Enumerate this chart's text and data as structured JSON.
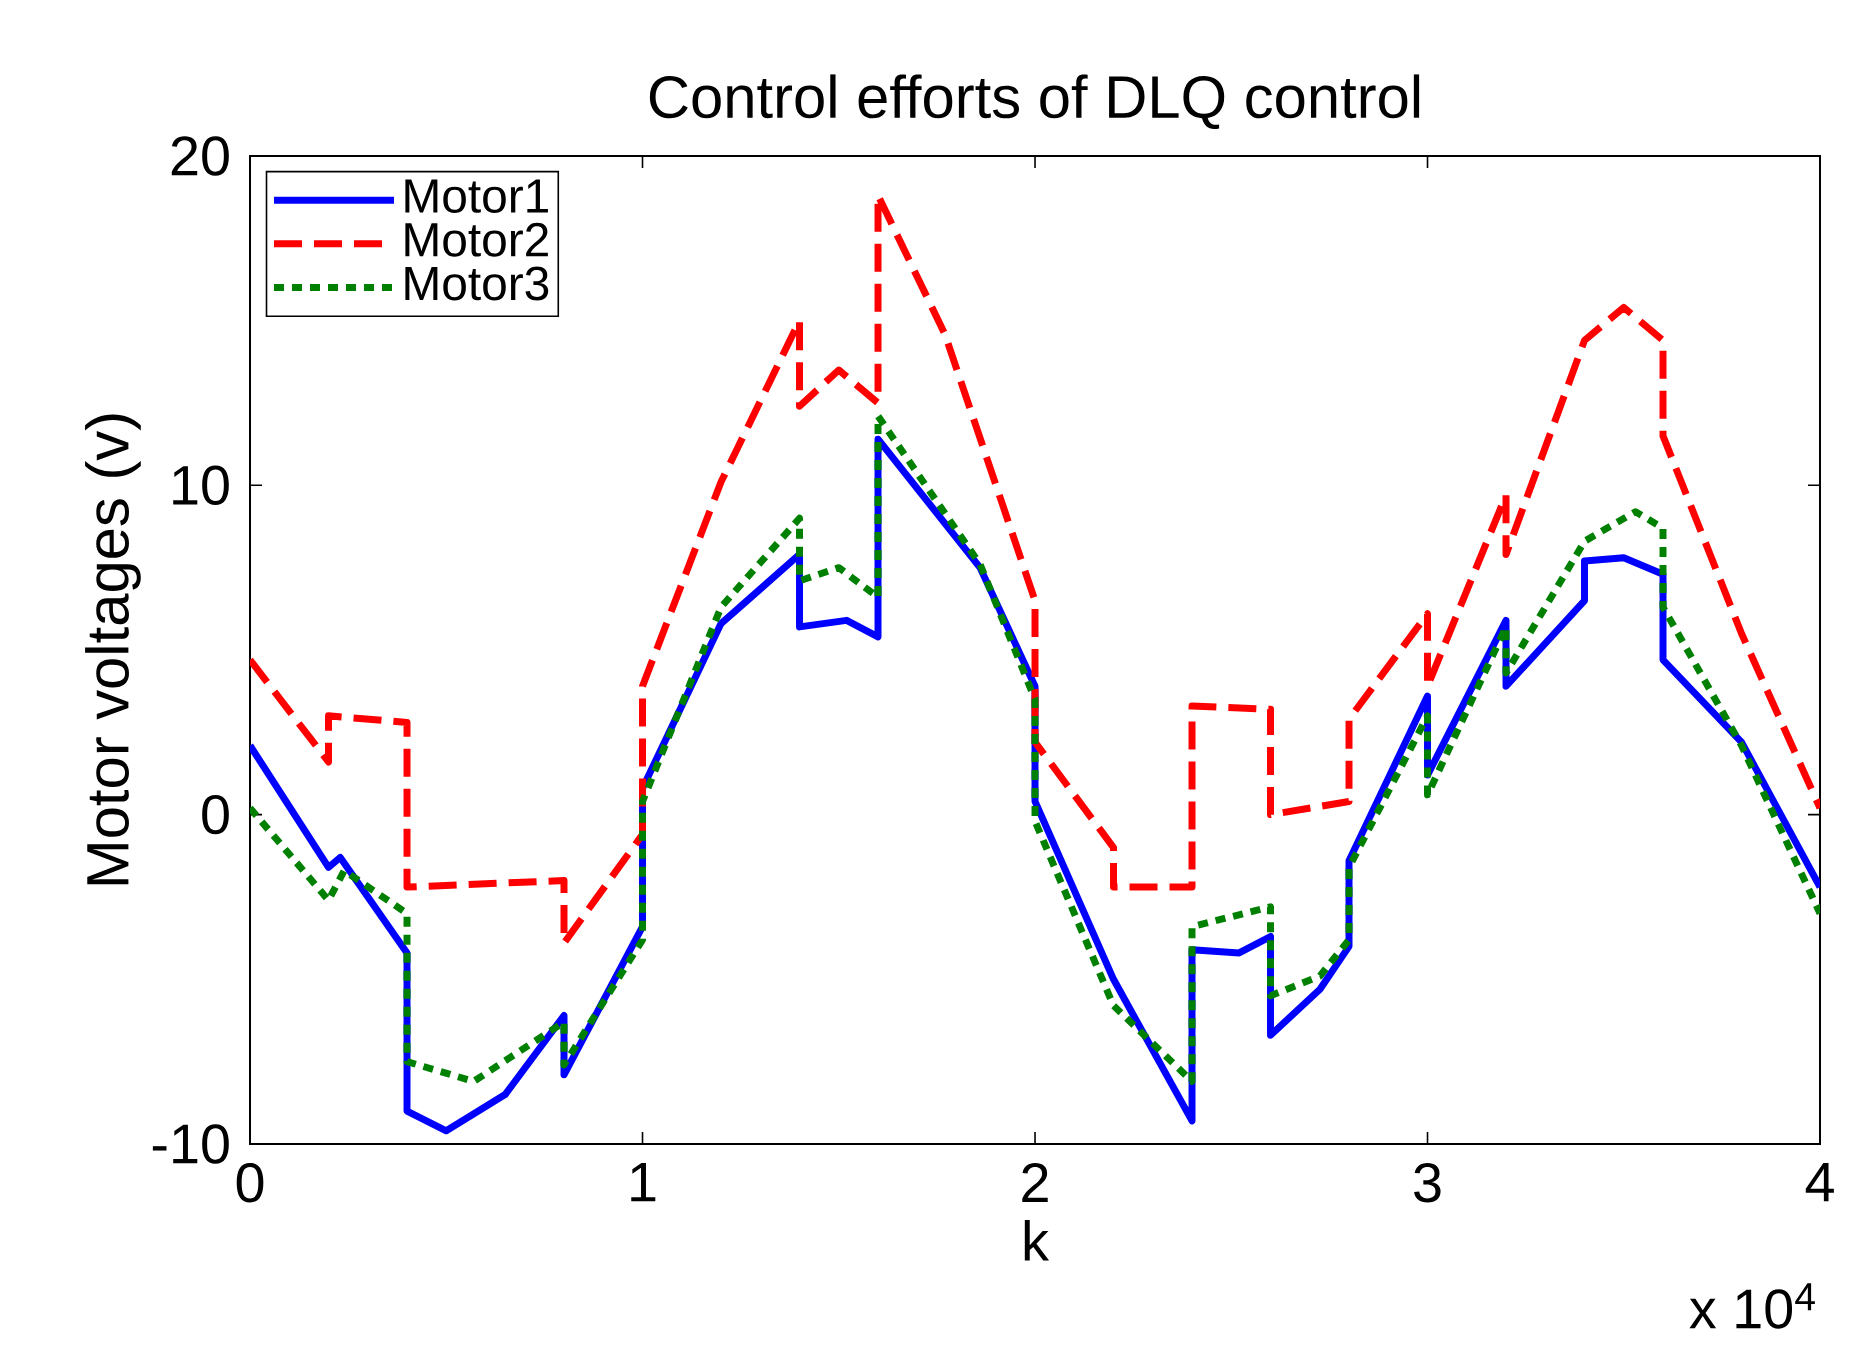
{
  "chart_data": {
    "type": "line",
    "title": "Control efforts of DLQ control",
    "xlabel": "k",
    "ylabel": "Motor voltages (v)",
    "annotations": [
      "x 10$^{4}$"
    ],
    "xlim": [
      0,
      4
    ],
    "ylim": [
      -10,
      20
    ],
    "xticks": [
      0,
      1,
      2,
      3,
      4
    ],
    "yticks": [
      -10,
      0,
      10,
      20
    ],
    "legend": "top left",
    "marker": "none",
    "series": [
      {
        "name": "Motor1",
        "color": "#0000ff",
        "line_style": "solid",
        "x": [
          0,
          0.2,
          0.23,
          0.4,
          0.4,
          0.5,
          0.65,
          0.8,
          0.8,
          1,
          1,
          1.2,
          1.4,
          1.4,
          1.52,
          1.6,
          1.6,
          1.86,
          2,
          2,
          2.2,
          2.4,
          2.4,
          2.52,
          2.6,
          2.6,
          2.726,
          2.8,
          2.8,
          3,
          3,
          3.2,
          3.2,
          3.4,
          3.4,
          3.5,
          3.6,
          3.6,
          3.8,
          4
        ],
        "values": [
          2.1,
          -1.6,
          -1.3,
          -4.2,
          -9.0,
          -9.6,
          -8.5,
          -6.1,
          -7.9,
          -3.4,
          0.8,
          5.8,
          7.9,
          5.7,
          5.9,
          5.4,
          11.4,
          7.5,
          3.9,
          0.4,
          -5.0,
          -9.3,
          -4.1,
          -4.2,
          -3.7,
          -6.7,
          -5.3,
          -4.0,
          -1.4,
          3.6,
          1.2,
          5.9,
          3.9,
          6.5,
          7.7,
          7.8,
          7.3,
          4.7,
          2.2,
          -2.2
        ]
      },
      {
        "name": "Motor2",
        "color": "#ff0000",
        "line_style": "dashed",
        "x": [
          0,
          0.2,
          0.2,
          0.4,
          0.4,
          0.8,
          0.8,
          1,
          1,
          1.2,
          1.4,
          1.4,
          1.5,
          1.6,
          1.6,
          1.77,
          2,
          2,
          2.2,
          2.2,
          2.4,
          2.4,
          2.6,
          2.6,
          2.8,
          2.8,
          3,
          3,
          3.2,
          3.2,
          3.4,
          3.5,
          3.6,
          3.6,
          3.8,
          4
        ],
        "values": [
          4.7,
          1.6,
          3.0,
          2.8,
          -2.2,
          -2.0,
          -3.9,
          -0.6,
          3.9,
          10.1,
          15.0,
          12.4,
          13.5,
          12.5,
          18.8,
          14.6,
          6.5,
          2.2,
          -1.0,
          -2.2,
          -2.2,
          3.3,
          3.2,
          0.0,
          0.4,
          2.9,
          6.1,
          3.9,
          9.7,
          7.9,
          14.4,
          15.4,
          14.4,
          11.5,
          5.5,
          0.2
        ]
      },
      {
        "name": "Motor3",
        "color": "#008000",
        "line_style": "dotted",
        "x": [
          0,
          0.2,
          0.24,
          0.4,
          0.4,
          0.57,
          0.8,
          0.8,
          1,
          1,
          1.2,
          1.4,
          1.4,
          1.5,
          1.6,
          1.6,
          1.86,
          2,
          2,
          2.2,
          2.4,
          2.4,
          2.6,
          2.6,
          2.726,
          2.8,
          2.8,
          3,
          3,
          3.2,
          3.2,
          3.4,
          3.53,
          3.6,
          3.6,
          3.8,
          4
        ],
        "values": [
          0.2,
          -2.6,
          -1.7,
          -3.0,
          -7.5,
          -8.1,
          -6.3,
          -7.6,
          -3.8,
          0.4,
          6.3,
          9.0,
          7.1,
          7.5,
          6.6,
          12.1,
          7.6,
          3.5,
          -0.2,
          -5.8,
          -8.1,
          -3.4,
          -2.8,
          -5.5,
          -4.9,
          -3.8,
          -1.6,
          3.0,
          0.6,
          5.7,
          4.3,
          8.3,
          9.2,
          8.7,
          6.3,
          2.1,
          -3.0
        ]
      }
    ]
  }
}
